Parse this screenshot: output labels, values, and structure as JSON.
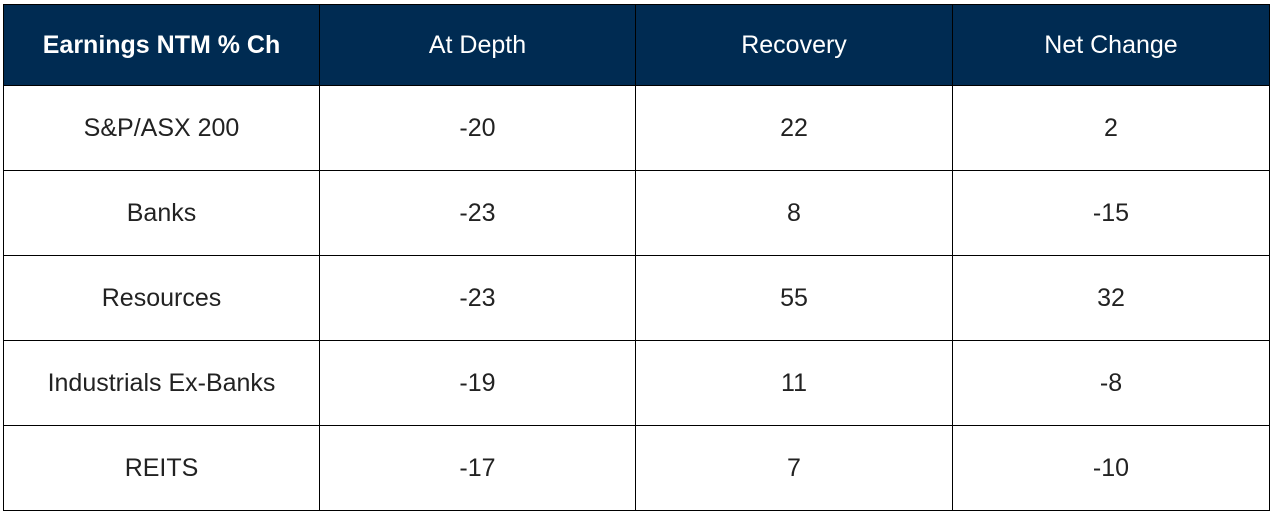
{
  "table": {
    "headers": [
      "Earnings NTM % Ch",
      "At Depth",
      "Recovery",
      "Net Change"
    ],
    "rows": [
      [
        "S&P/ASX 200",
        "-20",
        "22",
        "2"
      ],
      [
        "Banks",
        "-23",
        "8",
        "-15"
      ],
      [
        "Resources",
        "-23",
        "55",
        "32"
      ],
      [
        "Industrials Ex-Banks",
        "-19",
        "11",
        "-8"
      ],
      [
        "REITS",
        "-17",
        "7",
        "-10"
      ]
    ]
  },
  "colors": {
    "header_bg": "#002b52",
    "header_text": "#ffffff",
    "border": "#000000",
    "cell_text": "#222222"
  }
}
